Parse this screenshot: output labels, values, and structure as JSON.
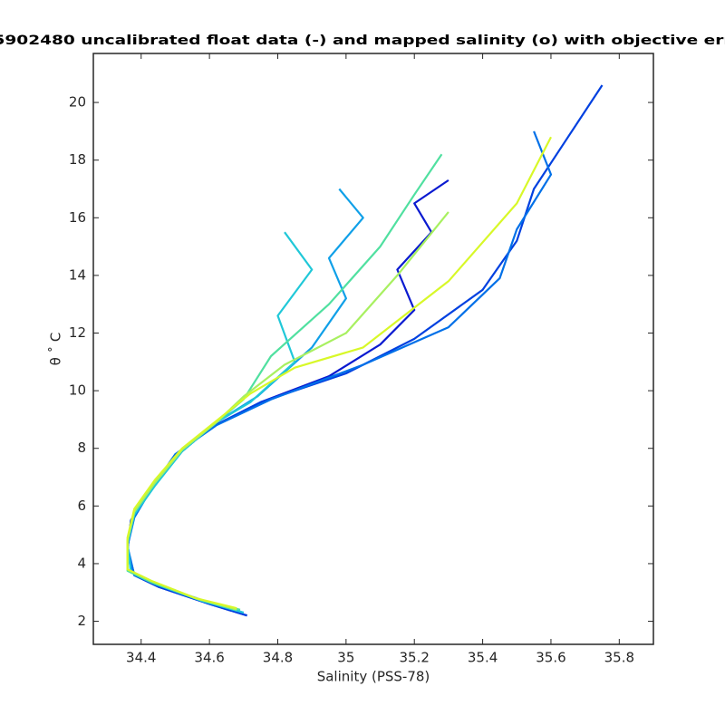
{
  "chart_data": {
    "type": "line",
    "title": "5902480 uncalibrated float data (-) and mapped salinity (o) with objective err",
    "xlabel": "Salinity (PSS-78)",
    "ylabel": "θ ˚ C",
    "xlim": [
      34.26,
      35.9
    ],
    "ylim": [
      1.2,
      21.7
    ],
    "xticks": [
      34.4,
      34.6,
      34.8,
      35,
      35.2,
      35.4,
      35.6,
      35.8
    ],
    "yticks": [
      2,
      4,
      6,
      8,
      10,
      12,
      14,
      16,
      18,
      20
    ],
    "series": [
      {
        "color": "#0a1ad0",
        "x": [
          34.71,
          34.6,
          34.45,
          34.38,
          34.36,
          34.37,
          34.42,
          34.5,
          34.6,
          34.75,
          34.95,
          35.1,
          35.2,
          35.15,
          35.25,
          35.2,
          35.3
        ],
        "values": [
          2.2,
          2.6,
          3.2,
          3.6,
          4.5,
          5.5,
          6.5,
          7.7,
          8.7,
          9.6,
          10.5,
          11.6,
          12.8,
          14.2,
          15.5,
          16.5,
          17.3
        ]
      },
      {
        "color": "#0040e0",
        "x": [
          34.71,
          34.6,
          34.45,
          34.38,
          34.36,
          34.37,
          34.42,
          34.5,
          34.6,
          34.75,
          35.0,
          35.2,
          35.4,
          35.5,
          35.55,
          35.65,
          35.75
        ],
        "values": [
          2.2,
          2.6,
          3.2,
          3.6,
          4.5,
          5.5,
          6.5,
          7.7,
          8.7,
          9.6,
          10.6,
          11.8,
          13.5,
          15.2,
          17.0,
          18.8,
          20.6
        ]
      },
      {
        "color": "#0070e8",
        "x": [
          34.7,
          34.6,
          34.45,
          34.38,
          34.36,
          34.38,
          34.43,
          34.5,
          34.62,
          34.78,
          35.05,
          35.3,
          35.45,
          35.5,
          35.6,
          35.55
        ],
        "values": [
          2.3,
          2.65,
          3.25,
          3.6,
          4.6,
          5.6,
          6.6,
          7.8,
          8.8,
          9.7,
          10.9,
          12.2,
          13.9,
          15.6,
          17.5,
          19.0
        ]
      },
      {
        "color": "#10a0e8",
        "x": [
          34.69,
          34.58,
          34.44,
          34.37,
          34.36,
          34.38,
          34.44,
          34.52,
          34.62,
          34.74,
          34.9,
          35.0,
          34.95,
          35.05,
          34.98
        ],
        "values": [
          2.35,
          2.7,
          3.3,
          3.7,
          4.7,
          5.7,
          6.7,
          7.9,
          8.9,
          9.8,
          11.5,
          13.2,
          14.6,
          16.0,
          17.0
        ]
      },
      {
        "color": "#20c8d8",
        "x": [
          34.7,
          34.58,
          34.44,
          34.37,
          34.36,
          34.38,
          34.44,
          34.52,
          34.62,
          34.72,
          34.85,
          34.8,
          34.9,
          34.82
        ],
        "values": [
          2.3,
          2.7,
          3.3,
          3.7,
          4.7,
          5.7,
          6.7,
          7.9,
          8.9,
          9.6,
          11.0,
          12.6,
          14.2,
          15.5
        ]
      },
      {
        "color": "#50e0a0",
        "x": [
          34.69,
          34.57,
          34.43,
          34.36,
          34.36,
          34.38,
          34.44,
          34.52,
          34.62,
          34.7,
          34.78,
          34.95,
          35.1,
          35.2,
          35.28
        ],
        "values": [
          2.4,
          2.75,
          3.35,
          3.75,
          4.8,
          5.8,
          6.8,
          7.95,
          8.9,
          9.7,
          11.2,
          13.0,
          15.0,
          16.8,
          18.2
        ]
      },
      {
        "color": "#a8f060",
        "x": [
          34.68,
          34.56,
          34.43,
          34.36,
          34.36,
          34.38,
          34.44,
          34.52,
          34.62,
          34.7,
          34.82,
          35.0,
          35.15,
          35.3
        ],
        "values": [
          2.4,
          2.8,
          3.4,
          3.8,
          4.8,
          5.8,
          6.8,
          7.95,
          8.9,
          9.8,
          10.9,
          12.0,
          14.0,
          16.2
        ]
      },
      {
        "color": "#d8f828",
        "x": [
          34.68,
          34.56,
          34.43,
          34.36,
          34.36,
          34.38,
          34.44,
          34.52,
          34.62,
          34.72,
          34.85,
          35.05,
          35.3,
          35.5,
          35.6
        ],
        "values": [
          2.45,
          2.8,
          3.4,
          3.8,
          4.9,
          5.9,
          6.9,
          8.0,
          8.95,
          9.9,
          10.8,
          11.5,
          13.8,
          16.5,
          18.8
        ]
      }
    ]
  }
}
